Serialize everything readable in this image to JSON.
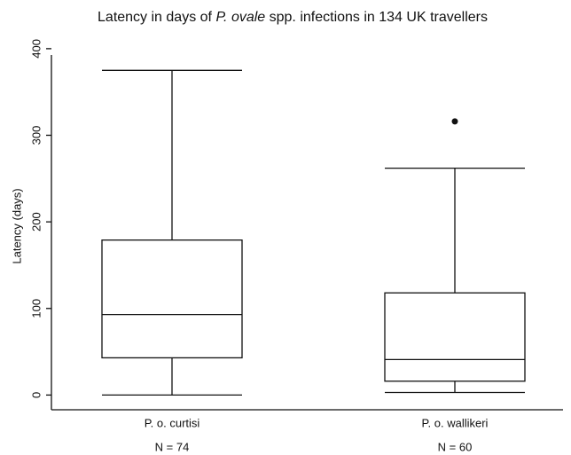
{
  "chart_data": {
    "type": "box",
    "title": {
      "before": "Latency in days of ",
      "italic": "P. ovale",
      "after": " spp. infections in 134 UK travellers"
    },
    "y_label": "Latency (days)",
    "categories": [
      "P. o. curtisi",
      "P. o. wallikeri"
    ],
    "category_notes": [
      "N = 74",
      "N = 60"
    ],
    "boxes": [
      {
        "min": 0,
        "q1": 43,
        "median": 93,
        "q3": 179,
        "max": 375,
        "outliers": []
      },
      {
        "min": 3,
        "q1": 16,
        "median": 41,
        "q3": 118,
        "max": 262,
        "outliers": [
          316
        ]
      }
    ],
    "ylim": [
      -17,
      405
    ],
    "yticks": [
      0,
      100,
      200,
      300,
      400
    ],
    "color": "#111111"
  }
}
